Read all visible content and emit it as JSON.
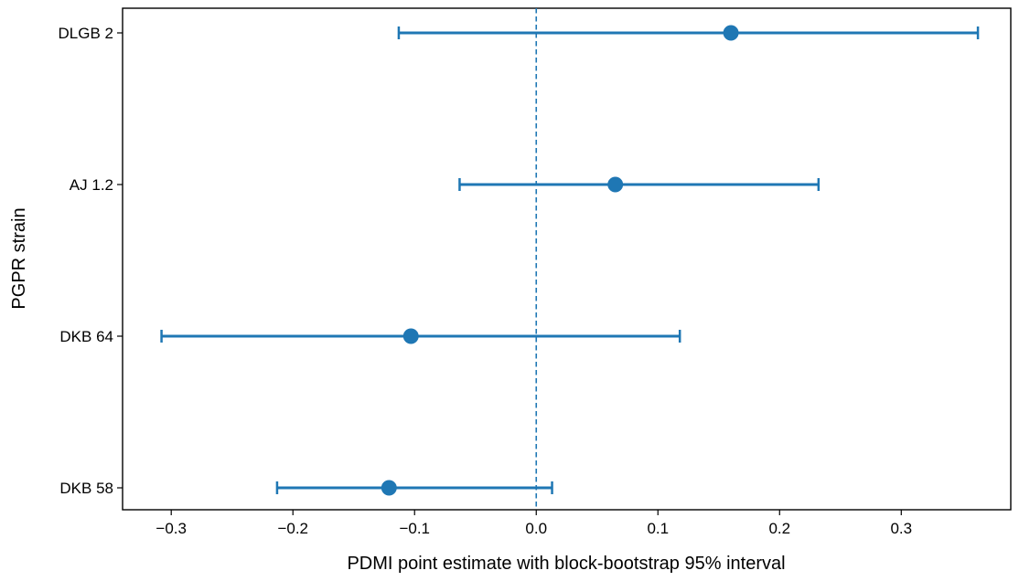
{
  "chart_data": {
    "type": "scatter",
    "subtype": "forest-plot-with-error-bars",
    "xlabel": "PDMI point estimate with block-bootstrap 95% interval",
    "ylabel": "PGPR strain",
    "xlim": [
      -0.34,
      0.39
    ],
    "x_ticks": [
      -0.3,
      -0.2,
      -0.1,
      0.0,
      0.1,
      0.2,
      0.3
    ],
    "x_tick_labels": [
      "−0.3",
      "−0.2",
      "−0.1",
      "0.0",
      "0.1",
      "0.2",
      "0.3"
    ],
    "reference_line": {
      "x": 0.0,
      "style": "dashed"
    },
    "grid": false,
    "color": "#1f77b4",
    "categories": [
      "DLGB 2",
      "AJ 1.2",
      "DKB 64",
      "DKB 58"
    ],
    "points": [
      {
        "label": "DLGB 2",
        "estimate": 0.16,
        "lower": -0.113,
        "upper": 0.363
      },
      {
        "label": "AJ 1.2",
        "estimate": 0.065,
        "lower": -0.063,
        "upper": 0.232
      },
      {
        "label": "DKB 64",
        "estimate": -0.103,
        "lower": -0.308,
        "upper": 0.118
      },
      {
        "label": "DKB 58",
        "estimate": -0.121,
        "lower": -0.213,
        "upper": 0.013
      }
    ]
  }
}
